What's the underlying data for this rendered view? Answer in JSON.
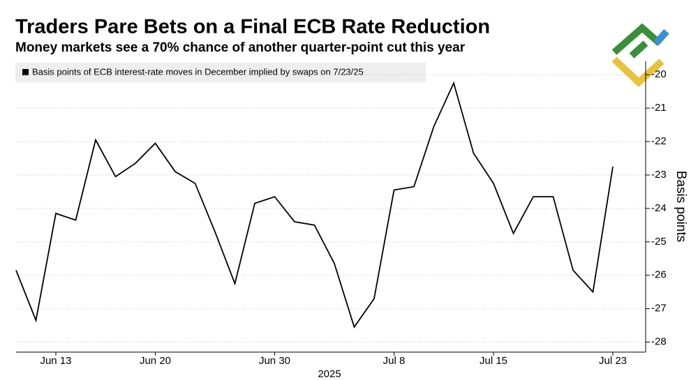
{
  "chart_data": {
    "type": "line",
    "title": "Traders Pare Bets on a Final ECB Rate Reduction",
    "subtitle": "Money markets see a 70% chance of another quarter-point cut this year",
    "xlabel": "2025",
    "ylabel": "Basis points",
    "categories": [
      null,
      null,
      "Jun 13",
      null,
      null,
      null,
      null,
      "Jun 20",
      null,
      null,
      null,
      null,
      null,
      "Jun 30",
      null,
      null,
      null,
      null,
      null,
      "Jul 8",
      null,
      null,
      null,
      null,
      "Jul 15",
      null,
      null,
      null,
      null,
      null,
      "Jul 23"
    ],
    "series": [
      {
        "name": "Basis points of ECB interest-rate moves in December implied by swaps on 7/23/25",
        "color": "#000000",
        "values": [
          -25.85,
          -27.35,
          -24.15,
          -24.35,
          -21.95,
          -23.05,
          -22.65,
          -22.05,
          -22.9,
          -23.25,
          -24.7,
          -26.25,
          -23.85,
          -23.65,
          -24.4,
          -24.5,
          -25.65,
          -27.55,
          -26.7,
          -23.45,
          -23.35,
          -21.55,
          -20.25,
          -22.35,
          -23.25,
          -24.75,
          -23.65,
          -23.65,
          -25.85,
          -26.5,
          -22.75
        ]
      }
    ],
    "ylim": [
      -28.3,
      -19.6
    ],
    "yticks": [
      -28,
      -27,
      -26,
      -25,
      -24,
      -23,
      -22,
      -21,
      -20
    ],
    "grid": true
  }
}
